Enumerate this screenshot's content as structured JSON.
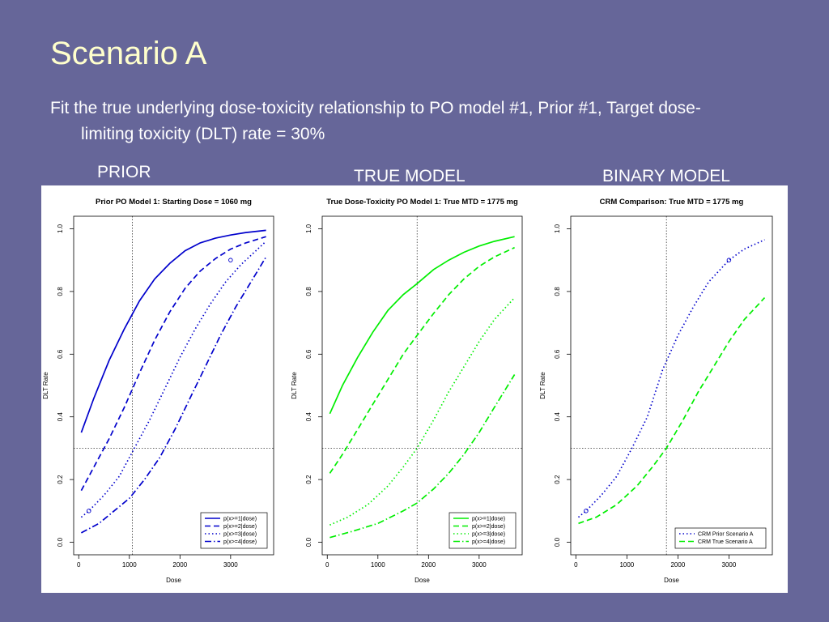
{
  "slide": {
    "title": "Scenario A",
    "subtitle": "Fit the true underlying dose-toxicity relationship to PO model #1, Prior #1, Target dose-limiting toxicity (DLT) rate = 30%"
  },
  "panel_labels": [
    "PRIOR",
    "TRUE MODEL",
    "BINARY MODEL"
  ],
  "colors": {
    "background": "#666699",
    "title": "#FFFFCC",
    "prior": "#0000CC",
    "true": "#00EE00"
  },
  "chart_data": [
    {
      "type": "line",
      "title": "Prior PO Model 1: Starting Dose = 1060 mg",
      "xlabel": "Dose",
      "ylabel": "DLT Rate",
      "xlim": [
        -100,
        3850
      ],
      "ylim": [
        -0.04,
        1.04
      ],
      "xticks": [
        0,
        1000,
        2000,
        3000
      ],
      "yticks": [
        0.0,
        0.2,
        0.4,
        0.6,
        0.8,
        1.0
      ],
      "reference_lines": {
        "vertical_x": 1060,
        "horizontal_y": 0.3
      },
      "legend_position": "bottom-right",
      "series": [
        {
          "name": "p(x>=1|dose)",
          "color": "#0000CC",
          "dash": "solid",
          "x": [
            50,
            300,
            600,
            900,
            1200,
            1500,
            1800,
            2100,
            2400,
            2700,
            3000,
            3300,
            3700
          ],
          "y": [
            0.35,
            0.46,
            0.58,
            0.68,
            0.77,
            0.84,
            0.89,
            0.93,
            0.955,
            0.97,
            0.98,
            0.988,
            0.995
          ]
        },
        {
          "name": "p(x>=2|dose)",
          "color": "#0000CC",
          "dash": "dashed",
          "x": [
            50,
            300,
            600,
            900,
            1200,
            1500,
            1800,
            2100,
            2400,
            2700,
            3000,
            3300,
            3700
          ],
          "y": [
            0.165,
            0.24,
            0.33,
            0.43,
            0.54,
            0.645,
            0.735,
            0.81,
            0.865,
            0.905,
            0.935,
            0.955,
            0.975
          ]
        },
        {
          "name": "p(x>=3|dose)",
          "color": "#0000CC",
          "dash": "dotted",
          "x": [
            50,
            200,
            500,
            800,
            1100,
            1400,
            1700,
            2000,
            2300,
            2600,
            2900,
            3200,
            3500,
            3700
          ],
          "y": [
            0.08,
            0.1,
            0.15,
            0.21,
            0.3,
            0.39,
            0.49,
            0.59,
            0.68,
            0.76,
            0.83,
            0.885,
            0.93,
            0.96
          ]
        },
        {
          "name": "p(x>=4|dose)",
          "color": "#0000CC",
          "dash": "dashdot",
          "x": [
            50,
            400,
            700,
            1000,
            1300,
            1600,
            1900,
            2200,
            2500,
            2800,
            3100,
            3400,
            3700
          ],
          "y": [
            0.03,
            0.06,
            0.1,
            0.14,
            0.2,
            0.27,
            0.36,
            0.46,
            0.56,
            0.66,
            0.75,
            0.83,
            0.91
          ]
        }
      ],
      "markers": [
        {
          "x": 200,
          "y": 0.1
        },
        {
          "x": 3000,
          "y": 0.9
        }
      ]
    },
    {
      "type": "line",
      "title": "True Dose-Toxicity PO Model 1: True MTD = 1775 mg",
      "xlabel": "Dose",
      "ylabel": "DLT Rate",
      "xlim": [
        -100,
        3850
      ],
      "ylim": [
        -0.04,
        1.04
      ],
      "xticks": [
        0,
        1000,
        2000,
        3000
      ],
      "yticks": [
        0.0,
        0.2,
        0.4,
        0.6,
        0.8,
        1.0
      ],
      "reference_lines": {
        "vertical_x": 1775,
        "horizontal_y": 0.3
      },
      "legend_position": "bottom-right",
      "series": [
        {
          "name": "p(x>=1|dose)",
          "color": "#00EE00",
          "dash": "solid",
          "x": [
            50,
            300,
            600,
            900,
            1200,
            1500,
            1775,
            2100,
            2400,
            2700,
            3000,
            3300,
            3700
          ],
          "y": [
            0.41,
            0.5,
            0.59,
            0.67,
            0.74,
            0.79,
            0.825,
            0.87,
            0.9,
            0.925,
            0.945,
            0.96,
            0.975
          ]
        },
        {
          "name": "p(x>=2|dose)",
          "color": "#00EE00",
          "dash": "dashed",
          "x": [
            50,
            300,
            600,
            900,
            1200,
            1500,
            1775,
            2100,
            2400,
            2700,
            3000,
            3300,
            3700
          ],
          "y": [
            0.22,
            0.28,
            0.36,
            0.44,
            0.52,
            0.6,
            0.66,
            0.73,
            0.79,
            0.84,
            0.88,
            0.91,
            0.94
          ]
        },
        {
          "name": "p(x>=3|dose)",
          "color": "#00EE00",
          "dash": "dotted",
          "x": [
            50,
            400,
            800,
            1200,
            1500,
            1775,
            2100,
            2400,
            2700,
            3000,
            3300,
            3700
          ],
          "y": [
            0.055,
            0.08,
            0.12,
            0.18,
            0.24,
            0.3,
            0.39,
            0.48,
            0.56,
            0.64,
            0.71,
            0.78
          ]
        },
        {
          "name": "p(x>=4|dose)",
          "color": "#00EE00",
          "dash": "dashdot",
          "x": [
            50,
            500,
            1000,
            1500,
            1775,
            2100,
            2400,
            2700,
            3000,
            3300,
            3700
          ],
          "y": [
            0.015,
            0.035,
            0.06,
            0.1,
            0.125,
            0.17,
            0.22,
            0.28,
            0.35,
            0.43,
            0.535
          ]
        }
      ]
    },
    {
      "type": "line",
      "title": "CRM Comparison: True MTD = 1775 mg",
      "xlabel": "Dose",
      "ylabel": "DLT Rate",
      "xlim": [
        -100,
        3850
      ],
      "ylim": [
        -0.04,
        1.04
      ],
      "xticks": [
        0,
        1000,
        2000,
        3000
      ],
      "yticks": [
        0.0,
        0.2,
        0.4,
        0.6,
        0.8,
        1.0
      ],
      "reference_lines": {
        "vertical_x": 1775,
        "horizontal_y": 0.3
      },
      "legend_position": "bottom-right",
      "series": [
        {
          "name": "CRM Prior Scenario A",
          "color": "#0000CC",
          "dash": "dotted",
          "x": [
            50,
            200,
            500,
            800,
            1100,
            1400,
            1700,
            2000,
            2300,
            2600,
            3000,
            3300,
            3700
          ],
          "y": [
            0.08,
            0.1,
            0.15,
            0.21,
            0.3,
            0.4,
            0.55,
            0.66,
            0.75,
            0.83,
            0.9,
            0.935,
            0.965
          ]
        },
        {
          "name": "CRM True Scenario A",
          "color": "#00EE00",
          "dash": "dashed",
          "x": [
            50,
            400,
            800,
            1200,
            1500,
            1775,
            2100,
            2400,
            2700,
            3000,
            3300,
            3700
          ],
          "y": [
            0.06,
            0.08,
            0.12,
            0.18,
            0.24,
            0.3,
            0.39,
            0.48,
            0.56,
            0.64,
            0.71,
            0.78
          ]
        }
      ],
      "markers": [
        {
          "x": 200,
          "y": 0.1
        },
        {
          "x": 3000,
          "y": 0.9
        }
      ]
    }
  ]
}
